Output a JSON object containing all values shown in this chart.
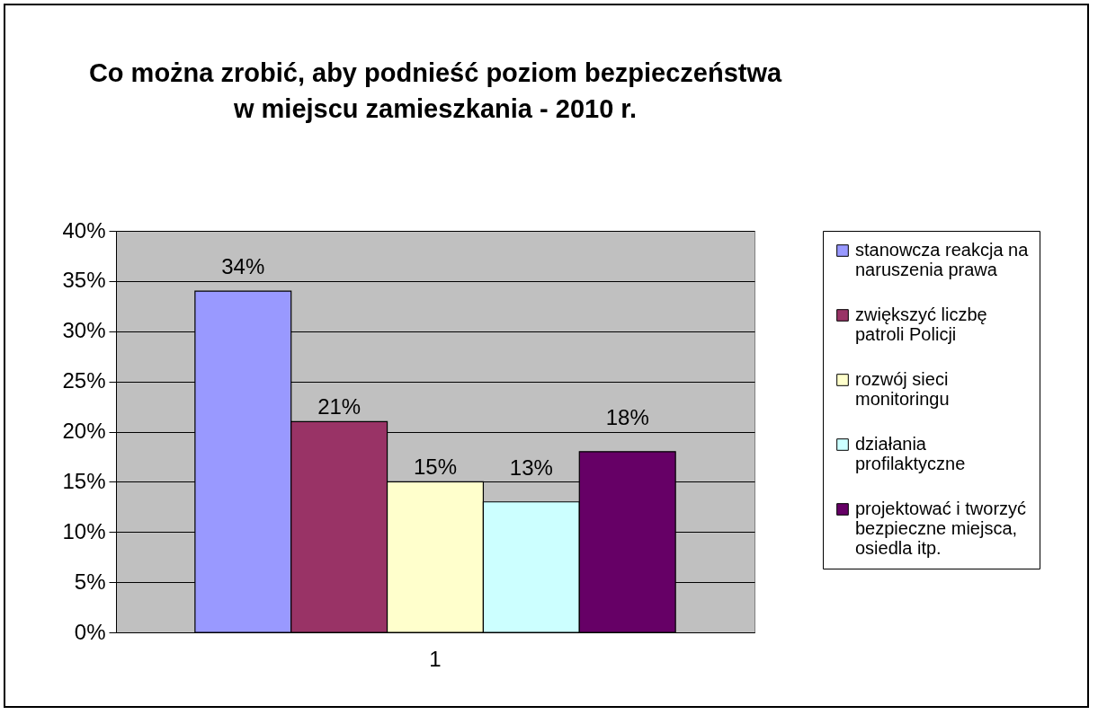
{
  "chart_data": {
    "type": "bar",
    "title": "Co można zrobić, aby podnieść poziom bezpieczeństwa w miejscu zamieszkania - 2010 r.",
    "categories": [
      "1"
    ],
    "series": [
      {
        "name": "stanowcza reakcja na naruszenia prawa",
        "color": "#9999ff",
        "values": [
          34
        ],
        "value_labels": [
          "34%"
        ]
      },
      {
        "name": "zwiększyć liczbę patroli Policji",
        "color": "#993366",
        "values": [
          21
        ],
        "value_labels": [
          "21%"
        ]
      },
      {
        "name": "rozwój sieci monitoringu",
        "color": "#ffffcc",
        "values": [
          15
        ],
        "value_labels": [
          "15%"
        ]
      },
      {
        "name": "działania profilaktyczne",
        "color": "#ccffff",
        "values": [
          13
        ],
        "value_labels": [
          "13%"
        ]
      },
      {
        "name": "projektować i tworzyć bezpieczne miejsca, osiedla itp.",
        "color": "#660066",
        "values": [
          18
        ],
        "value_labels": [
          "18%"
        ]
      }
    ],
    "ylim": [
      0,
      40
    ],
    "yticks": [
      {
        "value": 0,
        "label": "0%"
      },
      {
        "value": 5,
        "label": "5%"
      },
      {
        "value": 10,
        "label": "10%"
      },
      {
        "value": 15,
        "label": "15%"
      },
      {
        "value": 20,
        "label": "20%"
      },
      {
        "value": 25,
        "label": "25%"
      },
      {
        "value": 30,
        "label": "30%"
      },
      {
        "value": 35,
        "label": "35%"
      },
      {
        "value": 40,
        "label": "40%"
      }
    ],
    "grid": "y",
    "legend": "right"
  }
}
